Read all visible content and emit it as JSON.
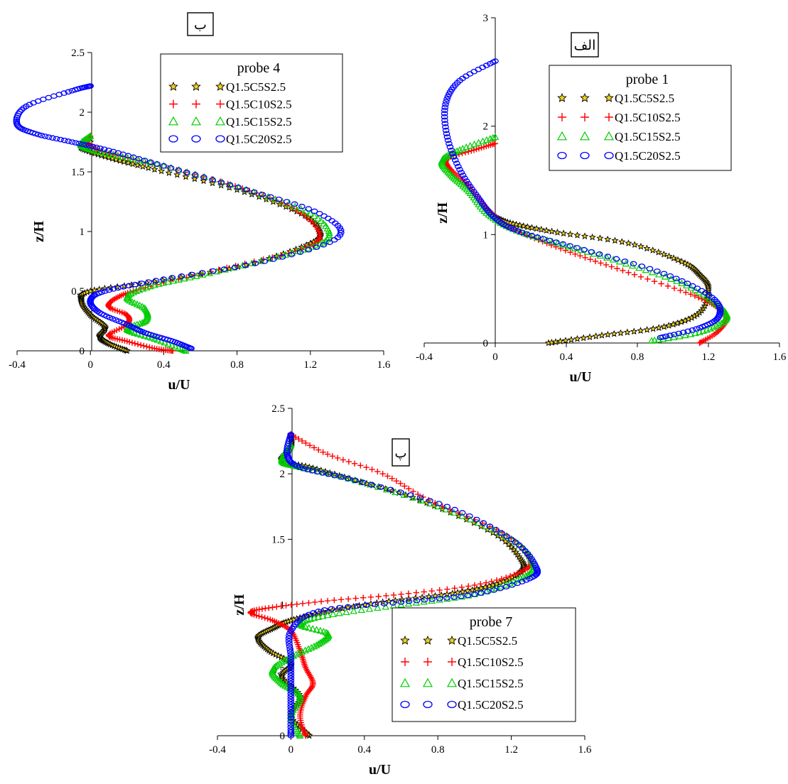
{
  "colors": {
    "Q1.5C5S2.5": "#000000",
    "Q1.5C5S2.5_fill": "#f2d21a",
    "Q1.5C10S2.5": "#ff0000",
    "Q1.5C15S2.5": "#00cc00",
    "Q1.5C20S2.5": "#0000ff"
  },
  "markers": {
    "Q1.5C5S2.5": "star-icon",
    "Q1.5C10S2.5": "plus-icon",
    "Q1.5C15S2.5": "triangle-icon",
    "Q1.5C20S2.5": "circle-icon"
  },
  "chart_data": [
    {
      "id": "alef",
      "type": "scatter",
      "panel_label": "الف",
      "legend_title": "probe 1",
      "legend_position": "top-right",
      "xlabel": "u/U",
      "ylabel": "z/H",
      "xlim": [
        -0.4,
        1.6
      ],
      "ylim": [
        0,
        3
      ],
      "xticks": [
        "-0.4",
        "0",
        "0.4",
        "0.8",
        "1.2",
        "1.6"
      ],
      "yticks": [
        "0",
        "1",
        "2",
        "3"
      ],
      "grid": false,
      "series": [
        {
          "name": "Q1.5C5S2.5",
          "points": [
            [
              0.3,
              0
            ],
            [
              0.6,
              0.07
            ],
            [
              0.95,
              0.15
            ],
            [
              1.15,
              0.28
            ],
            [
              1.2,
              0.5
            ],
            [
              1.15,
              0.63
            ],
            [
              1.05,
              0.75
            ],
            [
              0.75,
              0.92
            ],
            [
              0.35,
              1.02
            ],
            [
              0.1,
              1.1
            ],
            [
              0.0,
              1.16
            ]
          ]
        },
        {
          "name": "Q1.5C10S2.5",
          "points": [
            [
              1.15,
              0
            ],
            [
              1.25,
              0.1
            ],
            [
              1.3,
              0.22
            ],
            [
              1.25,
              0.33
            ],
            [
              1.1,
              0.45
            ],
            [
              0.75,
              0.65
            ],
            [
              0.45,
              0.82
            ],
            [
              0.2,
              0.98
            ],
            [
              0.05,
              1.1
            ],
            [
              -0.05,
              1.25
            ],
            [
              -0.15,
              1.45
            ],
            [
              -0.25,
              1.6
            ],
            [
              -0.27,
              1.7
            ],
            [
              -0.12,
              1.78
            ],
            [
              0.0,
              1.84
            ]
          ]
        },
        {
          "name": "Q1.5C15S2.5",
          "points": [
            [
              0.88,
              0.02
            ],
            [
              1.15,
              0.1
            ],
            [
              1.3,
              0.22
            ],
            [
              1.25,
              0.35
            ],
            [
              1.05,
              0.55
            ],
            [
              0.7,
              0.75
            ],
            [
              0.35,
              0.92
            ],
            [
              0.1,
              1.05
            ],
            [
              -0.05,
              1.2
            ],
            [
              -0.15,
              1.4
            ],
            [
              -0.25,
              1.55
            ],
            [
              -0.3,
              1.68
            ],
            [
              -0.2,
              1.78
            ],
            [
              0.0,
              1.9
            ]
          ]
        },
        {
          "name": "Q1.5C20S2.5",
          "points": [
            [
              0.93,
              0.05
            ],
            [
              1.15,
              0.14
            ],
            [
              1.26,
              0.25
            ],
            [
              1.22,
              0.42
            ],
            [
              0.95,
              0.64
            ],
            [
              0.5,
              0.86
            ],
            [
              0.15,
              1.02
            ],
            [
              0.0,
              1.15
            ],
            [
              -0.1,
              1.35
            ],
            [
              -0.2,
              1.6
            ],
            [
              -0.27,
              1.9
            ],
            [
              -0.28,
              2.2
            ],
            [
              -0.2,
              2.42
            ],
            [
              0.0,
              2.6
            ]
          ]
        }
      ]
    },
    {
      "id": "be",
      "type": "scatter",
      "panel_label": "ب",
      "legend_title": "probe 4",
      "legend_position": "top-right",
      "xlabel": "u/U",
      "ylabel": "z/H",
      "xlim": [
        -0.4,
        1.6
      ],
      "ylim": [
        0,
        2.5
      ],
      "xticks": [
        "-0.4",
        "0",
        "0.4",
        "0.8",
        "1.2",
        "1.6"
      ],
      "yticks": [
        "0",
        "0.5",
        "1",
        "1.5",
        "2",
        "2.5"
      ],
      "grid": false,
      "series": [
        {
          "name": "Q1.5C5S2.5",
          "points": [
            [
              0.2,
              0
            ],
            [
              0.1,
              0.06
            ],
            [
              0.05,
              0.12
            ],
            [
              0.08,
              0.2
            ],
            [
              0.0,
              0.3
            ],
            [
              -0.05,
              0.42
            ],
            [
              0.0,
              0.5
            ],
            [
              0.35,
              0.58
            ],
            [
              0.85,
              0.72
            ],
            [
              1.2,
              0.9
            ],
            [
              1.25,
              1.0
            ],
            [
              1.15,
              1.15
            ],
            [
              0.8,
              1.35
            ],
            [
              0.35,
              1.52
            ],
            [
              0.1,
              1.62
            ],
            [
              -0.05,
              1.7
            ],
            [
              0.0,
              1.75
            ]
          ]
        },
        {
          "name": "Q1.5C10S2.5",
          "points": [
            [
              0.45,
              0
            ],
            [
              0.35,
              0.02
            ],
            [
              0.2,
              0.08
            ],
            [
              0.1,
              0.13
            ],
            [
              0.2,
              0.22
            ],
            [
              0.2,
              0.3
            ],
            [
              0.1,
              0.37
            ],
            [
              0.15,
              0.45
            ],
            [
              0.3,
              0.53
            ],
            [
              0.7,
              0.68
            ],
            [
              1.15,
              0.85
            ],
            [
              1.25,
              0.98
            ],
            [
              1.1,
              1.2
            ],
            [
              0.75,
              1.4
            ],
            [
              0.3,
              1.58
            ],
            [
              0.05,
              1.68
            ],
            [
              -0.02,
              1.75
            ],
            [
              0.0,
              1.8
            ]
          ]
        },
        {
          "name": "Q1.5C15S2.5",
          "points": [
            [
              0.52,
              0
            ],
            [
              0.35,
              0.1
            ],
            [
              0.2,
              0.18
            ],
            [
              0.3,
              0.25
            ],
            [
              0.3,
              0.35
            ],
            [
              0.2,
              0.45
            ],
            [
              0.35,
              0.55
            ],
            [
              0.65,
              0.65
            ],
            [
              1.1,
              0.82
            ],
            [
              1.3,
              0.95
            ],
            [
              1.2,
              1.15
            ],
            [
              0.85,
              1.35
            ],
            [
              0.4,
              1.55
            ],
            [
              0.1,
              1.65
            ],
            [
              -0.05,
              1.72
            ],
            [
              0.0,
              1.8
            ]
          ]
        },
        {
          "name": "Q1.5C20S2.5",
          "points": [
            [
              0.55,
              0.02
            ],
            [
              0.45,
              0.08
            ],
            [
              0.3,
              0.15
            ],
            [
              0.2,
              0.22
            ],
            [
              0.05,
              0.32
            ],
            [
              0.0,
              0.42
            ],
            [
              0.08,
              0.5
            ],
            [
              0.4,
              0.6
            ],
            [
              0.95,
              0.75
            ],
            [
              1.35,
              0.95
            ],
            [
              1.25,
              1.15
            ],
            [
              0.85,
              1.35
            ],
            [
              0.4,
              1.55
            ],
            [
              0.1,
              1.68
            ],
            [
              -0.1,
              1.75
            ],
            [
              -0.3,
              1.82
            ],
            [
              -0.4,
              1.9
            ],
            [
              -0.35,
              2.05
            ],
            [
              -0.1,
              2.18
            ],
            [
              0.0,
              2.22
            ]
          ]
        }
      ]
    },
    {
      "id": "pe",
      "type": "scatter",
      "panel_label": "پ",
      "legend_title": "probe 7",
      "legend_position": "bottom-right",
      "xlabel": "u/U",
      "ylabel": "z/H",
      "xlim": [
        -0.4,
        1.6
      ],
      "ylim": [
        0,
        2.5
      ],
      "xticks": [
        "-0.4",
        "0",
        "0.4",
        "0.8",
        "1.2",
        "1.6"
      ],
      "yticks": [
        "0",
        "0.5",
        "1",
        "1.5",
        "2",
        "2.5"
      ],
      "grid": false,
      "series": [
        {
          "name": "Q1.5C5S2.5",
          "points": [
            [
              0.1,
              0
            ],
            [
              0.0,
              0.15
            ],
            [
              0.05,
              0.3
            ],
            [
              -0.05,
              0.45
            ],
            [
              0.0,
              0.55
            ],
            [
              -0.12,
              0.65
            ],
            [
              -0.18,
              0.75
            ],
            [
              -0.1,
              0.82
            ],
            [
              0.0,
              0.88
            ],
            [
              0.2,
              0.95
            ],
            [
              0.5,
              1.02
            ],
            [
              0.85,
              1.08
            ],
            [
              1.1,
              1.15
            ],
            [
              1.25,
              1.25
            ],
            [
              1.25,
              1.35
            ],
            [
              1.1,
              1.55
            ],
            [
              0.7,
              1.8
            ],
            [
              0.35,
              1.95
            ],
            [
              0.1,
              2.05
            ],
            [
              -0.05,
              2.1
            ],
            [
              0.0,
              2.2
            ],
            [
              0.0,
              2.3
            ]
          ]
        },
        {
          "name": "Q1.5C10S2.5",
          "points": [
            [
              0.08,
              0
            ],
            [
              0.05,
              0.15
            ],
            [
              0.08,
              0.3
            ],
            [
              0.12,
              0.4
            ],
            [
              0.08,
              0.52
            ],
            [
              0.05,
              0.65
            ],
            [
              0.0,
              0.8
            ],
            [
              -0.1,
              0.88
            ],
            [
              -0.22,
              0.94
            ],
            [
              -0.1,
              0.98
            ],
            [
              0.2,
              1.03
            ],
            [
              0.6,
              1.08
            ],
            [
              1.0,
              1.15
            ],
            [
              1.25,
              1.25
            ],
            [
              1.3,
              1.35
            ],
            [
              1.15,
              1.55
            ],
            [
              0.75,
              1.8
            ],
            [
              0.5,
              2.0
            ],
            [
              0.2,
              2.15
            ],
            [
              0.0,
              2.3
            ]
          ]
        },
        {
          "name": "Q1.5C15S2.5",
          "points": [
            [
              0.05,
              0
            ],
            [
              0.0,
              0.15
            ],
            [
              0.05,
              0.3
            ],
            [
              -0.05,
              0.4
            ],
            [
              -0.1,
              0.5
            ],
            [
              0.0,
              0.6
            ],
            [
              0.15,
              0.7
            ],
            [
              0.2,
              0.78
            ],
            [
              0.05,
              0.85
            ],
            [
              0.2,
              0.92
            ],
            [
              0.6,
              1.0
            ],
            [
              1.0,
              1.08
            ],
            [
              1.25,
              1.2
            ],
            [
              1.32,
              1.3
            ],
            [
              1.2,
              1.5
            ],
            [
              0.8,
              1.75
            ],
            [
              0.35,
              1.95
            ],
            [
              0.05,
              2.05
            ],
            [
              -0.05,
              2.1
            ],
            [
              0.0,
              2.22
            ]
          ]
        },
        {
          "name": "Q1.5C20S2.5",
          "points": [
            [
              0.0,
              0
            ],
            [
              0.0,
              0.2
            ],
            [
              0.0,
              0.4
            ],
            [
              0.0,
              0.6
            ],
            [
              0.0,
              0.8
            ],
            [
              0.15,
              0.95
            ],
            [
              0.6,
              1.02
            ],
            [
              1.0,
              1.08
            ],
            [
              1.3,
              1.2
            ],
            [
              1.33,
              1.3
            ],
            [
              1.2,
              1.5
            ],
            [
              0.85,
              1.75
            ],
            [
              0.35,
              1.95
            ],
            [
              0.05,
              2.05
            ],
            [
              -0.02,
              2.15
            ],
            [
              0.0,
              2.3
            ]
          ]
        }
      ]
    }
  ]
}
